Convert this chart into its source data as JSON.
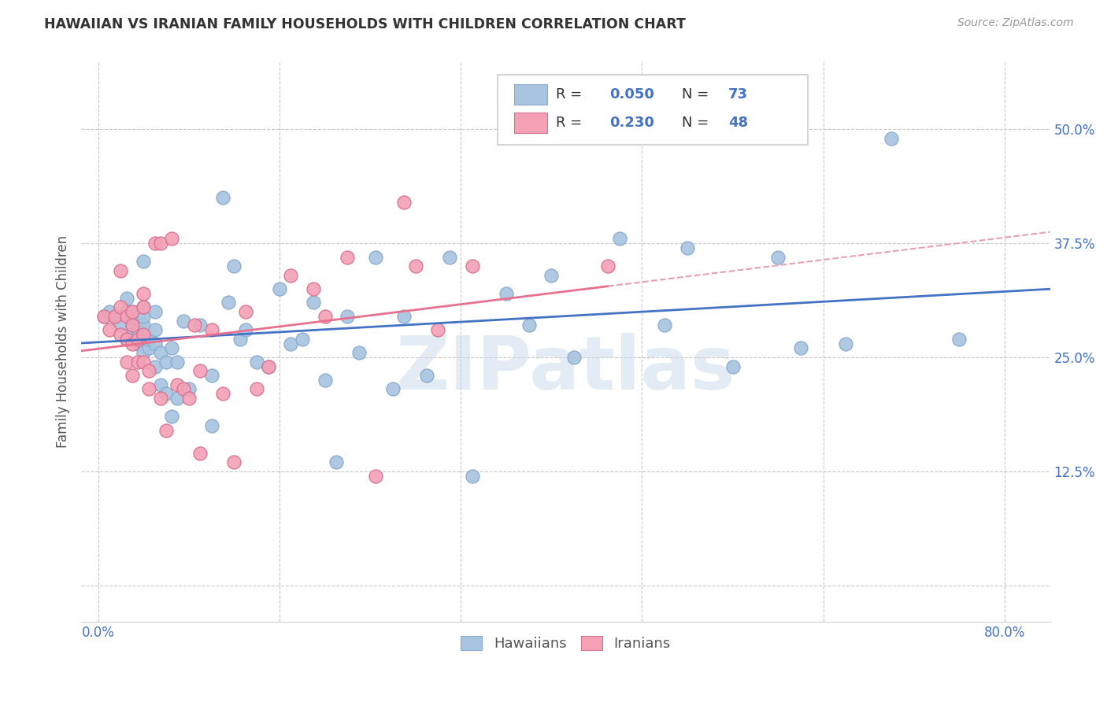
{
  "title": "HAWAIIAN VS IRANIAN FAMILY HOUSEHOLDS WITH CHILDREN CORRELATION CHART",
  "source": "Source: ZipAtlas.com",
  "ylabel": "Family Households with Children",
  "watermark": "ZIPatlas",
  "x_ticks": [
    0.0,
    0.16,
    0.32,
    0.48,
    0.64,
    0.8
  ],
  "x_tick_labels": [
    "0.0%",
    "",
    "",
    "",
    "",
    "80.0%"
  ],
  "y_ticks": [
    0.0,
    0.125,
    0.25,
    0.375,
    0.5
  ],
  "y_tick_labels": [
    "",
    "12.5%",
    "25.0%",
    "37.5%",
    "50.0%"
  ],
  "xlim": [
    -0.015,
    0.84
  ],
  "ylim": [
    -0.04,
    0.575
  ],
  "hawaiians_color": "#a8c4e0",
  "iranians_color": "#f4a0b5",
  "hawaiians_line_color": "#4472c4",
  "iranians_line_color": "#e87090",
  "iranians_line_dash_color": "#e8a0b0",
  "background_color": "#ffffff",
  "grid_color": "#c8c8c8",
  "legend_text_color": "#333333",
  "legend_value_color": "#4472c4",
  "tick_color": "#4472c4",
  "ylabel_color": "#555555",
  "hawaiians_x": [
    0.005,
    0.01,
    0.015,
    0.02,
    0.025,
    0.025,
    0.025,
    0.03,
    0.03,
    0.03,
    0.03,
    0.035,
    0.035,
    0.035,
    0.04,
    0.04,
    0.04,
    0.04,
    0.04,
    0.04,
    0.045,
    0.045,
    0.05,
    0.05,
    0.05,
    0.05,
    0.055,
    0.055,
    0.06,
    0.06,
    0.065,
    0.065,
    0.07,
    0.07,
    0.075,
    0.08,
    0.09,
    0.1,
    0.1,
    0.11,
    0.115,
    0.12,
    0.125,
    0.13,
    0.14,
    0.15,
    0.16,
    0.17,
    0.18,
    0.19,
    0.2,
    0.21,
    0.22,
    0.23,
    0.245,
    0.26,
    0.27,
    0.29,
    0.31,
    0.33,
    0.36,
    0.38,
    0.4,
    0.42,
    0.46,
    0.5,
    0.52,
    0.56,
    0.6,
    0.62,
    0.66,
    0.7,
    0.76
  ],
  "hawaiians_y": [
    0.295,
    0.3,
    0.295,
    0.285,
    0.27,
    0.3,
    0.315,
    0.275,
    0.285,
    0.295,
    0.3,
    0.265,
    0.28,
    0.295,
    0.255,
    0.275,
    0.285,
    0.295,
    0.305,
    0.355,
    0.26,
    0.27,
    0.24,
    0.265,
    0.28,
    0.3,
    0.22,
    0.255,
    0.21,
    0.245,
    0.185,
    0.26,
    0.205,
    0.245,
    0.29,
    0.215,
    0.285,
    0.175,
    0.23,
    0.425,
    0.31,
    0.35,
    0.27,
    0.28,
    0.245,
    0.24,
    0.325,
    0.265,
    0.27,
    0.31,
    0.225,
    0.135,
    0.295,
    0.255,
    0.36,
    0.215,
    0.295,
    0.23,
    0.36,
    0.12,
    0.32,
    0.285,
    0.34,
    0.25,
    0.38,
    0.285,
    0.37,
    0.24,
    0.36,
    0.26,
    0.265,
    0.49,
    0.27
  ],
  "iranians_x": [
    0.005,
    0.01,
    0.015,
    0.02,
    0.02,
    0.02,
    0.025,
    0.025,
    0.025,
    0.03,
    0.03,
    0.03,
    0.03,
    0.035,
    0.035,
    0.04,
    0.04,
    0.04,
    0.04,
    0.045,
    0.045,
    0.05,
    0.055,
    0.055,
    0.06,
    0.065,
    0.07,
    0.075,
    0.08,
    0.085,
    0.09,
    0.09,
    0.1,
    0.11,
    0.12,
    0.13,
    0.14,
    0.15,
    0.17,
    0.19,
    0.2,
    0.22,
    0.245,
    0.27,
    0.28,
    0.3,
    0.33,
    0.45
  ],
  "iranians_y": [
    0.295,
    0.28,
    0.295,
    0.275,
    0.305,
    0.345,
    0.245,
    0.27,
    0.295,
    0.23,
    0.265,
    0.285,
    0.3,
    0.245,
    0.27,
    0.245,
    0.275,
    0.305,
    0.32,
    0.215,
    0.235,
    0.375,
    0.205,
    0.375,
    0.17,
    0.38,
    0.22,
    0.215,
    0.205,
    0.285,
    0.145,
    0.235,
    0.28,
    0.21,
    0.135,
    0.3,
    0.215,
    0.24,
    0.34,
    0.325,
    0.295,
    0.36,
    0.12,
    0.42,
    0.35,
    0.28,
    0.35,
    0.35
  ]
}
